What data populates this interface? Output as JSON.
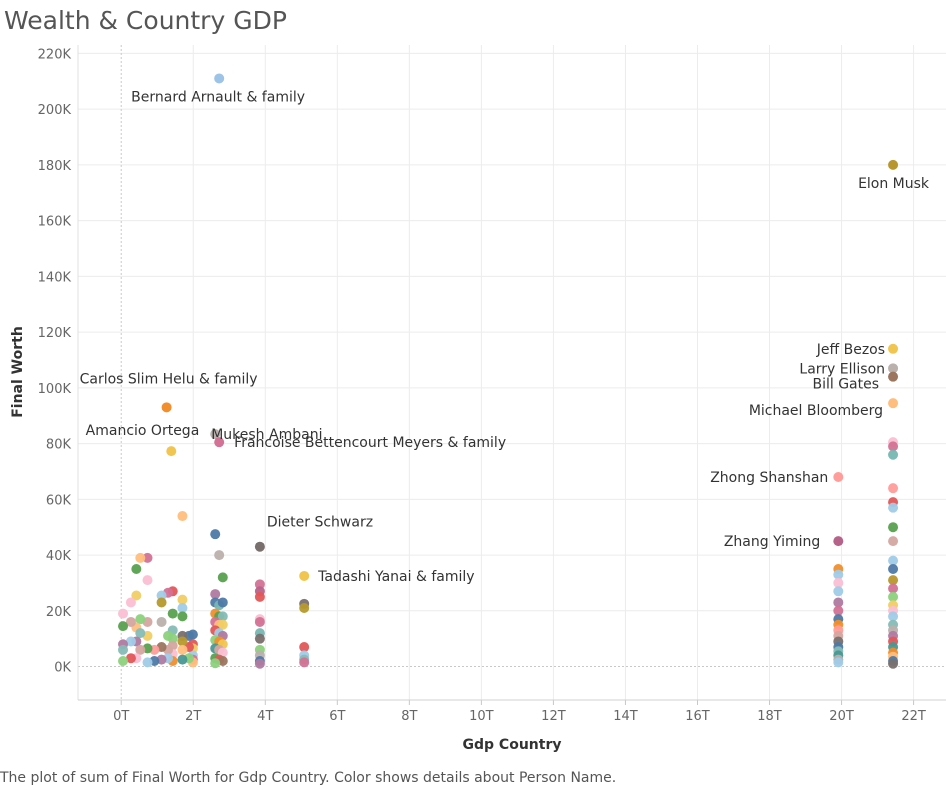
{
  "title": "Wealth & Country GDP",
  "caption": "The plot of sum of Final Worth for Gdp Country.  Color shows details about Person Name.",
  "chart_data": {
    "type": "scatter",
    "title": "Wealth & Country GDP",
    "xlabel": "Gdp Country",
    "ylabel": "Final Worth",
    "xlim": [
      -1.2,
      22.9
    ],
    "ylim": [
      -12000,
      223000
    ],
    "x_ticks": [
      0,
      2,
      4,
      6,
      8,
      10,
      12,
      14,
      16,
      18,
      20,
      22
    ],
    "x_tick_labels": [
      "0T",
      "2T",
      "4T",
      "6T",
      "8T",
      "10T",
      "12T",
      "14T",
      "16T",
      "18T",
      "20T",
      "22T"
    ],
    "y_ticks": [
      0,
      20000,
      40000,
      60000,
      80000,
      100000,
      120000,
      140000,
      160000,
      180000,
      200000,
      220000
    ],
    "y_tick_labels": [
      "0K",
      "20K",
      "40K",
      "60K",
      "80K",
      "100K",
      "120K",
      "140K",
      "160K",
      "180K",
      "200K",
      "220K"
    ],
    "grid": true,
    "x_unit": "trillions",
    "labeled_points": [
      {
        "name": "Bernard Arnault & family",
        "x": 2.72,
        "y": 211000,
        "color": "#9dc3e6"
      },
      {
        "name": "Elon Musk",
        "x": 21.43,
        "y": 180000,
        "color": "#b8962e"
      },
      {
        "name": "Jeff Bezos",
        "x": 21.43,
        "y": 114000,
        "color": "#f1c650"
      },
      {
        "name": "Larry Ellison",
        "x": 21.43,
        "y": 107000,
        "color": "#bab0ac"
      },
      {
        "name": "Bill Gates",
        "x": 21.43,
        "y": 104000,
        "color": "#9c755f"
      },
      {
        "name": "Michael Bloomberg",
        "x": 21.43,
        "y": 94500,
        "color": "#ffbe7d"
      },
      {
        "name": "Carlos Slim Helu & family",
        "x": 1.26,
        "y": 93000,
        "color": "#f28e2b"
      },
      {
        "name": "Mukesh Ambani",
        "x": 2.61,
        "y": 83400,
        "color": "#bab0ac"
      },
      {
        "name": "Francoise Bettencourt Meyers & family",
        "x": 2.72,
        "y": 80500,
        "color": "#d37295"
      },
      {
        "name": "Amancio Ortega",
        "x": 1.39,
        "y": 77300,
        "color": "#f1c650"
      },
      {
        "name": "Zhong Shanshan",
        "x": 19.91,
        "y": 68000,
        "color": "#ff9d9a"
      },
      {
        "name": "Dieter Schwarz",
        "x": 3.85,
        "y": 43000,
        "color": "#79706e"
      },
      {
        "name": "Zhang Yiming",
        "x": 19.91,
        "y": 45000,
        "color": "#b6638a"
      },
      {
        "name": "Tadashi Yanai & family",
        "x": 5.08,
        "y": 32500,
        "color": "#f1c650"
      }
    ],
    "other_points": [
      {
        "x": 21.43,
        "y": 80500,
        "color": "#fabfd2"
      },
      {
        "x": 21.43,
        "y": 79000,
        "color": "#d37295"
      },
      {
        "x": 21.43,
        "y": 76000,
        "color": "#76b7b2"
      },
      {
        "x": 21.43,
        "y": 64000,
        "color": "#ff9d9a"
      },
      {
        "x": 21.43,
        "y": 59000,
        "color": "#e15759"
      },
      {
        "x": 21.43,
        "y": 57000,
        "color": "#a0cbe8"
      },
      {
        "x": 21.43,
        "y": 50000,
        "color": "#59a14f"
      },
      {
        "x": 21.43,
        "y": 45000,
        "color": "#d4a6a0"
      },
      {
        "x": 21.43,
        "y": 38000,
        "color": "#a0cbe8"
      },
      {
        "x": 21.43,
        "y": 35000,
        "color": "#4e79a7"
      },
      {
        "x": 21.43,
        "y": 31000,
        "color": "#b8962e"
      },
      {
        "x": 21.43,
        "y": 28000,
        "color": "#d37295"
      },
      {
        "x": 21.43,
        "y": 25000,
        "color": "#8cd17d"
      },
      {
        "x": 21.43,
        "y": 22000,
        "color": "#f1ce63"
      },
      {
        "x": 21.43,
        "y": 20000,
        "color": "#fabfd2"
      },
      {
        "x": 21.43,
        "y": 18000,
        "color": "#a0cbe8"
      },
      {
        "x": 21.43,
        "y": 15000,
        "color": "#86bcb6"
      },
      {
        "x": 21.43,
        "y": 13000,
        "color": "#bab0ac"
      },
      {
        "x": 21.43,
        "y": 11000,
        "color": "#b07aa1"
      },
      {
        "x": 21.43,
        "y": 9000,
        "color": "#e15759"
      },
      {
        "x": 21.43,
        "y": 7000,
        "color": "#499894"
      },
      {
        "x": 21.43,
        "y": 5000,
        "color": "#f28e2b"
      },
      {
        "x": 21.43,
        "y": 3500,
        "color": "#ffbe7d"
      },
      {
        "x": 21.43,
        "y": 2000,
        "color": "#4e79a7"
      },
      {
        "x": 21.43,
        "y": 1000,
        "color": "#79706e"
      },
      {
        "x": 19.91,
        "y": 35000,
        "color": "#f28e2b"
      },
      {
        "x": 19.91,
        "y": 33000,
        "color": "#a0cbe8"
      },
      {
        "x": 19.91,
        "y": 30000,
        "color": "#fabfd2"
      },
      {
        "x": 19.91,
        "y": 27000,
        "color": "#a0cbe8"
      },
      {
        "x": 19.91,
        "y": 23000,
        "color": "#b07aa1"
      },
      {
        "x": 19.91,
        "y": 20000,
        "color": "#d37295"
      },
      {
        "x": 19.91,
        "y": 17000,
        "color": "#4e79a7"
      },
      {
        "x": 19.91,
        "y": 15000,
        "color": "#f28e2b"
      },
      {
        "x": 19.91,
        "y": 13000,
        "color": "#ff9d9a"
      },
      {
        "x": 19.91,
        "y": 11000,
        "color": "#d4a6a0"
      },
      {
        "x": 19.91,
        "y": 9000,
        "color": "#79706e"
      },
      {
        "x": 19.91,
        "y": 7000,
        "color": "#4e79a7"
      },
      {
        "x": 19.91,
        "y": 5500,
        "color": "#86bcb6"
      },
      {
        "x": 19.91,
        "y": 4000,
        "color": "#499894"
      },
      {
        "x": 19.91,
        "y": 2500,
        "color": "#bab0ac"
      },
      {
        "x": 19.91,
        "y": 1500,
        "color": "#a0cbe8"
      },
      {
        "x": 5.08,
        "y": 22500,
        "color": "#79706e"
      },
      {
        "x": 5.08,
        "y": 21000,
        "color": "#b6992d"
      },
      {
        "x": 5.08,
        "y": 7000,
        "color": "#e15759"
      },
      {
        "x": 5.08,
        "y": 4000,
        "color": "#a0cbe8"
      },
      {
        "x": 5.08,
        "y": 2500,
        "color": "#86bcb6"
      },
      {
        "x": 5.08,
        "y": 1500,
        "color": "#d37295"
      },
      {
        "x": 3.85,
        "y": 29500,
        "color": "#d37295"
      },
      {
        "x": 3.85,
        "y": 27000,
        "color": "#b6638a"
      },
      {
        "x": 3.85,
        "y": 25000,
        "color": "#e15759"
      },
      {
        "x": 3.85,
        "y": 17000,
        "color": "#fabfd2"
      },
      {
        "x": 3.85,
        "y": 16000,
        "color": "#d37295"
      },
      {
        "x": 3.85,
        "y": 12000,
        "color": "#76b7b2"
      },
      {
        "x": 3.85,
        "y": 10000,
        "color": "#79706e"
      },
      {
        "x": 3.85,
        "y": 6000,
        "color": "#8cd17d"
      },
      {
        "x": 3.85,
        "y": 4000,
        "color": "#bab0ac"
      },
      {
        "x": 3.85,
        "y": 2000,
        "color": "#4e79a7"
      },
      {
        "x": 3.85,
        "y": 1000,
        "color": "#b07aa1"
      },
      {
        "x": 2.61,
        "y": 47500,
        "color": "#4e79a7"
      },
      {
        "x": 2.72,
        "y": 40000,
        "color": "#bab0ac"
      },
      {
        "x": 2.82,
        "y": 32000,
        "color": "#59a14f"
      },
      {
        "x": 2.61,
        "y": 26000,
        "color": "#b07aa1"
      },
      {
        "x": 2.61,
        "y": 23000,
        "color": "#4e79a7"
      },
      {
        "x": 2.72,
        "y": 22000,
        "color": "#76b7b2"
      },
      {
        "x": 2.82,
        "y": 23000,
        "color": "#4e79a7"
      },
      {
        "x": 2.61,
        "y": 19000,
        "color": "#f28e2b"
      },
      {
        "x": 2.72,
        "y": 18000,
        "color": "#59a14f"
      },
      {
        "x": 2.82,
        "y": 18000,
        "color": "#86bcb6"
      },
      {
        "x": 2.61,
        "y": 16000,
        "color": "#d37295"
      },
      {
        "x": 2.72,
        "y": 15000,
        "color": "#ffbe7d"
      },
      {
        "x": 2.82,
        "y": 15000,
        "color": "#f1ce63"
      },
      {
        "x": 2.61,
        "y": 13000,
        "color": "#e15759"
      },
      {
        "x": 2.72,
        "y": 12000,
        "color": "#a0cbe8"
      },
      {
        "x": 2.82,
        "y": 11000,
        "color": "#b07aa1"
      },
      {
        "x": 2.61,
        "y": 9500,
        "color": "#8cd17d"
      },
      {
        "x": 2.72,
        "y": 9000,
        "color": "#f28e2b"
      },
      {
        "x": 2.82,
        "y": 8000,
        "color": "#f1c650"
      },
      {
        "x": 2.61,
        "y": 6500,
        "color": "#499894"
      },
      {
        "x": 2.72,
        "y": 6000,
        "color": "#d4a6a0"
      },
      {
        "x": 2.82,
        "y": 5000,
        "color": "#fabfd2"
      },
      {
        "x": 2.61,
        "y": 3000,
        "color": "#59a14f"
      },
      {
        "x": 2.72,
        "y": 2500,
        "color": "#e15759"
      },
      {
        "x": 2.82,
        "y": 2000,
        "color": "#9c755f"
      },
      {
        "x": 2.61,
        "y": 1200,
        "color": "#8cd17d"
      },
      {
        "x": 1.99,
        "y": 11500,
        "color": "#4e79a7"
      },
      {
        "x": 1.99,
        "y": 8000,
        "color": "#e15759"
      },
      {
        "x": 1.99,
        "y": 6500,
        "color": "#f1ce63"
      },
      {
        "x": 1.99,
        "y": 4000,
        "color": "#a0cbe8"
      },
      {
        "x": 1.99,
        "y": 2500,
        "color": "#d37295"
      },
      {
        "x": 1.99,
        "y": 1500,
        "color": "#ffbe7d"
      },
      {
        "x": 1.88,
        "y": 11000,
        "color": "#4e79a7"
      },
      {
        "x": 1.88,
        "y": 7000,
        "color": "#e15759"
      },
      {
        "x": 1.88,
        "y": 3000,
        "color": "#8cd17d"
      },
      {
        "x": 1.7,
        "y": 54000,
        "color": "#ffbe7d"
      },
      {
        "x": 1.7,
        "y": 24000,
        "color": "#f1ce63"
      },
      {
        "x": 1.7,
        "y": 21000,
        "color": "#a0cbe8"
      },
      {
        "x": 1.7,
        "y": 18000,
        "color": "#59a14f"
      },
      {
        "x": 1.7,
        "y": 11000,
        "color": "#79706e"
      },
      {
        "x": 1.7,
        "y": 9000,
        "color": "#b6992d"
      },
      {
        "x": 1.7,
        "y": 6000,
        "color": "#ffbe7d"
      },
      {
        "x": 1.7,
        "y": 2500,
        "color": "#499894"
      },
      {
        "x": 1.43,
        "y": 27000,
        "color": "#e15759"
      },
      {
        "x": 1.43,
        "y": 19000,
        "color": "#59a14f"
      },
      {
        "x": 1.43,
        "y": 13000,
        "color": "#86bcb6"
      },
      {
        "x": 1.43,
        "y": 10000,
        "color": "#8cd17d"
      },
      {
        "x": 1.43,
        "y": 7500,
        "color": "#d4a6a0"
      },
      {
        "x": 1.43,
        "y": 4500,
        "color": "#fabfd2"
      },
      {
        "x": 1.43,
        "y": 2000,
        "color": "#f28e2b"
      },
      {
        "x": 1.3,
        "y": 26500,
        "color": "#d37295"
      },
      {
        "x": 1.3,
        "y": 11000,
        "color": "#8cd17d"
      },
      {
        "x": 1.3,
        "y": 6000,
        "color": "#d4a6a0"
      },
      {
        "x": 1.3,
        "y": 3000,
        "color": "#a0cbe8"
      },
      {
        "x": 1.12,
        "y": 25500,
        "color": "#a0cbe8"
      },
      {
        "x": 1.12,
        "y": 23000,
        "color": "#b6992d"
      },
      {
        "x": 1.12,
        "y": 16000,
        "color": "#bab0ac"
      },
      {
        "x": 1.12,
        "y": 7000,
        "color": "#9c755f"
      },
      {
        "x": 1.12,
        "y": 2500,
        "color": "#b07aa1"
      },
      {
        "x": 0.92,
        "y": 6000,
        "color": "#ff9d9a"
      },
      {
        "x": 0.92,
        "y": 2000,
        "color": "#4e79a7"
      },
      {
        "x": 0.73,
        "y": 39000,
        "color": "#d37295"
      },
      {
        "x": 0.73,
        "y": 31000,
        "color": "#fabfd2"
      },
      {
        "x": 0.73,
        "y": 16000,
        "color": "#d4a6a0"
      },
      {
        "x": 0.73,
        "y": 11000,
        "color": "#f1ce63"
      },
      {
        "x": 0.73,
        "y": 6500,
        "color": "#59a14f"
      },
      {
        "x": 0.73,
        "y": 1500,
        "color": "#a0cbe8"
      },
      {
        "x": 0.53,
        "y": 39000,
        "color": "#ffbe7d"
      },
      {
        "x": 0.42,
        "y": 35000,
        "color": "#59a14f"
      },
      {
        "x": 0.42,
        "y": 25500,
        "color": "#f1ce63"
      },
      {
        "x": 0.53,
        "y": 17000,
        "color": "#8cd17d"
      },
      {
        "x": 0.42,
        "y": 14000,
        "color": "#ffbe7d"
      },
      {
        "x": 0.53,
        "y": 12000,
        "color": "#86bcb6"
      },
      {
        "x": 0.42,
        "y": 9000,
        "color": "#b07aa1"
      },
      {
        "x": 0.53,
        "y": 6000,
        "color": "#d4a6a0"
      },
      {
        "x": 0.42,
        "y": 3000,
        "color": "#fabfd2"
      },
      {
        "x": 0.27,
        "y": 23000,
        "color": "#fabfd2"
      },
      {
        "x": 0.27,
        "y": 16000,
        "color": "#d4a6a0"
      },
      {
        "x": 0.27,
        "y": 9000,
        "color": "#a0cbe8"
      },
      {
        "x": 0.27,
        "y": 3000,
        "color": "#e15759"
      },
      {
        "x": 0.05,
        "y": 19000,
        "color": "#fabfd2"
      },
      {
        "x": 0.05,
        "y": 14500,
        "color": "#59a14f"
      },
      {
        "x": 0.05,
        "y": 8000,
        "color": "#b07aa1"
      },
      {
        "x": 0.05,
        "y": 6000,
        "color": "#86bcb6"
      },
      {
        "x": 0.05,
        "y": 2000,
        "color": "#8cd17d"
      }
    ]
  }
}
